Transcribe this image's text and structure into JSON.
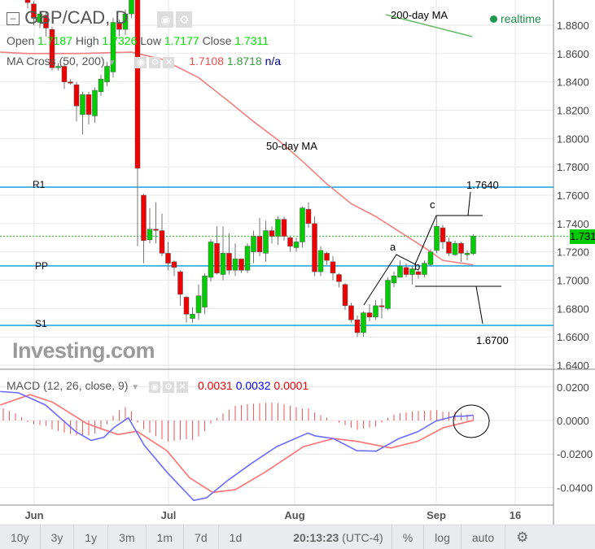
{
  "header": {
    "symbol": "GBP/CAD, D",
    "ohlc": {
      "open_label": "Open",
      "open": "1.7187",
      "high_label": "High",
      "high": "1.7326",
      "low_label": "Low",
      "low": "1.7177",
      "close_label": "Close",
      "close": "1.7311"
    },
    "ma_cross": {
      "label": "MA Cross (50, 200)",
      "ma50": "1.7108",
      "ma200": "1.8718",
      "extra": "n/a"
    },
    "realtime": "realtime"
  },
  "annotations": {
    "ma200": "200-day MA",
    "ma50": "50-day MA",
    "r1": "R1",
    "pp": "PP",
    "s1": "S1",
    "a": "a",
    "b": "b",
    "c": "c",
    "target_up": "1.7640",
    "target_down": "1.6700"
  },
  "logo": "Investing.com",
  "colors": {
    "up": "#00cc00",
    "down": "#ee0000",
    "ma50": "#f08080",
    "macd": "#6b6bff",
    "signal": "#ff7070",
    "level": "#0099dd",
    "price_tag": "#00cc00"
  },
  "macd_header": {
    "label": "MACD (12, 26, close, 9)",
    "v1": "0.0031",
    "v2": "0.0032",
    "v3": "0.0001"
  },
  "chart_data": {
    "type": "candlestick",
    "price_axis": {
      "ticks": [
        "1.8800",
        "1.8600",
        "1.8400",
        "1.8200",
        "1.8000",
        "1.7800",
        "1.7600",
        "1.7400",
        "1.7200",
        "1.7000",
        "1.6800",
        "1.6600",
        "1.6400"
      ],
      "range": [
        1.64,
        1.89
      ]
    },
    "last_price": "1.7311",
    "levels": {
      "r1": 1.7657,
      "pp": 1.7101,
      "s1": 1.6681
    },
    "x_ticks": [
      "Jun",
      "Jul",
      "Aug",
      "Sep",
      "16"
    ],
    "candles_ochl_note": "[open, close, high, low]",
    "candles": [
      [
        1.898,
        1.896,
        1.9,
        1.892
      ],
      [
        1.895,
        1.885,
        1.897,
        1.88
      ],
      [
        1.882,
        1.888,
        1.89,
        1.878
      ],
      [
        1.887,
        1.878,
        1.889,
        1.872
      ],
      [
        1.877,
        1.85,
        1.879,
        1.848
      ],
      [
        1.85,
        1.851,
        1.853,
        1.848
      ],
      [
        1.851,
        1.84,
        1.852,
        1.835
      ],
      [
        1.84,
        1.8399,
        1.842,
        1.838
      ],
      [
        1.838,
        1.823,
        1.84,
        1.812
      ],
      [
        1.817,
        1.831,
        1.833,
        1.803
      ],
      [
        1.831,
        1.817,
        1.833,
        1.81
      ],
      [
        1.816,
        1.834,
        1.836,
        1.811
      ],
      [
        1.833,
        1.842,
        1.845,
        1.83
      ],
      [
        1.84,
        1.851,
        1.854,
        1.837
      ],
      [
        1.847,
        1.882,
        1.885,
        1.843
      ],
      [
        1.882,
        1.877,
        1.884,
        1.872
      ],
      [
        1.877,
        1.888,
        1.891,
        1.873
      ],
      [
        1.888,
        1.898,
        1.9,
        1.885
      ],
      [
        1.898,
        1.779,
        1.9,
        1.724
      ],
      [
        1.76,
        1.728,
        1.761,
        1.712
      ],
      [
        1.7285,
        1.736,
        1.751,
        1.726
      ],
      [
        1.736,
        1.7355,
        1.755,
        1.726
      ],
      [
        1.735,
        1.719,
        1.747,
        1.717
      ],
      [
        1.719,
        1.712,
        1.727,
        1.707
      ],
      [
        1.713,
        1.709,
        1.714,
        1.703
      ],
      [
        1.706,
        1.69,
        1.707,
        1.682
      ],
      [
        1.688,
        1.676,
        1.689,
        1.67
      ],
      [
        1.673,
        1.676,
        1.681,
        1.67
      ],
      [
        1.677,
        1.689,
        1.697,
        1.672
      ],
      [
        1.681,
        1.703,
        1.705,
        1.676
      ],
      [
        1.702,
        1.727,
        1.729,
        1.699
      ],
      [
        1.726,
        1.705,
        1.738,
        1.704
      ],
      [
        1.704,
        1.719,
        1.738,
        1.7
      ],
      [
        1.719,
        1.707,
        1.733,
        1.704
      ],
      [
        1.707,
        1.715,
        1.726,
        1.703
      ],
      [
        1.715,
        1.707,
        1.715,
        1.705
      ],
      [
        1.707,
        1.724,
        1.726,
        1.705
      ],
      [
        1.72,
        1.731,
        1.735,
        1.712
      ],
      [
        1.731,
        1.72,
        1.744,
        1.717
      ],
      [
        1.719,
        1.735,
        1.742,
        1.713
      ],
      [
        1.735,
        1.731,
        1.738,
        1.726
      ],
      [
        1.731,
        1.743,
        1.745,
        1.725
      ],
      [
        1.743,
        1.731,
        1.745,
        1.728
      ],
      [
        1.73,
        1.724,
        1.731,
        1.72
      ],
      [
        1.723,
        1.727,
        1.73,
        1.72
      ],
      [
        1.727,
        1.751,
        1.752,
        1.723
      ],
      [
        1.75,
        1.74,
        1.755,
        1.737
      ],
      [
        1.74,
        1.706,
        1.745,
        1.703
      ],
      [
        1.706,
        1.721,
        1.724,
        1.703
      ],
      [
        1.719,
        1.714,
        1.72,
        1.711
      ],
      [
        1.713,
        1.705,
        1.717,
        1.7
      ],
      [
        1.704,
        1.699,
        1.705,
        1.695
      ],
      [
        1.697,
        1.682,
        1.698,
        1.679
      ],
      [
        1.682,
        1.672,
        1.684,
        1.67
      ],
      [
        1.672,
        1.663,
        1.675,
        1.66
      ],
      [
        1.663,
        1.677,
        1.678,
        1.66
      ],
      [
        1.677,
        1.674,
        1.683,
        1.671
      ],
      [
        1.674,
        1.682,
        1.686,
        1.672
      ],
      [
        1.682,
        1.6818,
        1.687,
        1.673
      ],
      [
        1.68,
        1.7,
        1.702,
        1.679
      ],
      [
        1.698,
        1.703,
        1.706,
        1.695
      ],
      [
        1.702,
        1.71,
        1.714,
        1.702
      ],
      [
        1.709,
        1.704,
        1.712,
        1.702
      ],
      [
        1.704,
        1.708,
        1.71,
        1.697
      ],
      [
        1.706,
        1.704,
        1.708,
        1.701
      ],
      [
        1.704,
        1.712,
        1.714,
        1.702
      ],
      [
        1.711,
        1.72,
        1.722,
        1.71
      ],
      [
        1.721,
        1.738,
        1.745,
        1.719
      ],
      [
        1.737,
        1.727,
        1.739,
        1.722
      ],
      [
        1.727,
        1.719,
        1.73,
        1.717
      ],
      [
        1.718,
        1.726,
        1.728,
        1.717
      ],
      [
        1.726,
        1.719,
        1.727,
        1.713
      ],
      [
        1.718,
        1.719,
        1.721,
        1.714
      ],
      [
        1.7187,
        1.7311,
        1.7326,
        1.7177
      ]
    ],
    "ma50": [
      [
        -4.5,
        1.861
      ],
      [
        0,
        1.86
      ],
      [
        8,
        1.86
      ],
      [
        17,
        1.861
      ],
      [
        22,
        1.856
      ],
      [
        28,
        1.843
      ],
      [
        33,
        1.826
      ],
      [
        37,
        1.812
      ],
      [
        41,
        1.799
      ],
      [
        45,
        1.784
      ],
      [
        49,
        1.768
      ],
      [
        53,
        1.754
      ],
      [
        57,
        1.745
      ],
      [
        61,
        1.734
      ],
      [
        65,
        1.723
      ],
      [
        68,
        1.714
      ],
      [
        73,
        1.7108
      ]
    ],
    "macd": {
      "axis_ticks": [
        "0.0200",
        "0.0000",
        "-0.0200",
        "-0.0400"
      ],
      "range": [
        -0.051,
        0.029
      ],
      "macd_line": [
        [
          -4.5,
          0.0173
        ],
        [
          -1.5,
          0.0165
        ],
        [
          2.9,
          0.0093
        ],
        [
          7.9,
          -0.0067
        ],
        [
          10.4,
          -0.0119
        ],
        [
          12.5,
          -0.01
        ],
        [
          14.1,
          -0.0043
        ],
        [
          16.5,
          0.0016
        ],
        [
          19.1,
          -0.0148
        ],
        [
          22.8,
          -0.0308
        ],
        [
          27.2,
          -0.0477
        ],
        [
          29.3,
          -0.0461
        ],
        [
          32.8,
          -0.0357
        ],
        [
          36.5,
          -0.026
        ],
        [
          40.8,
          -0.0156
        ],
        [
          45.9,
          -0.0075
        ],
        [
          47.1,
          -0.0092
        ],
        [
          50.1,
          -0.0108
        ],
        [
          53.9,
          -0.018
        ],
        [
          57.1,
          -0.0183
        ],
        [
          60.8,
          -0.0108
        ],
        [
          63.9,
          -0.0067
        ],
        [
          66.9,
          -0.0003
        ],
        [
          70,
          0.0026
        ],
        [
          71.5,
          0.0026
        ],
        [
          73,
          0.0032
        ]
      ],
      "signal_line": [
        [
          -4.5,
          0.0093
        ],
        [
          0.4,
          0.0154
        ],
        [
          4.1,
          0.0109
        ],
        [
          9.7,
          -0.0019
        ],
        [
          14.8,
          -0.0084
        ],
        [
          17.9,
          -0.0064
        ],
        [
          22.8,
          -0.018
        ],
        [
          26.5,
          -0.0341
        ],
        [
          30.3,
          -0.0429
        ],
        [
          34,
          -0.0413
        ],
        [
          38.9,
          -0.0308
        ],
        [
          45.2,
          -0.0156
        ],
        [
          50.1,
          -0.0108
        ],
        [
          53.9,
          -0.0124
        ],
        [
          59.5,
          -0.0164
        ],
        [
          63.9,
          -0.0124
        ],
        [
          68.1,
          -0.0043
        ],
        [
          73,
          0.0001
        ]
      ]
    }
  },
  "timeframes": [
    "10y",
    "3y",
    "1y",
    "3m",
    "1m",
    "7d",
    "1d"
  ],
  "clock": "20:13:23",
  "tz": "(UTC-4)",
  "toolbar_right": [
    "%",
    "log",
    "auto"
  ]
}
